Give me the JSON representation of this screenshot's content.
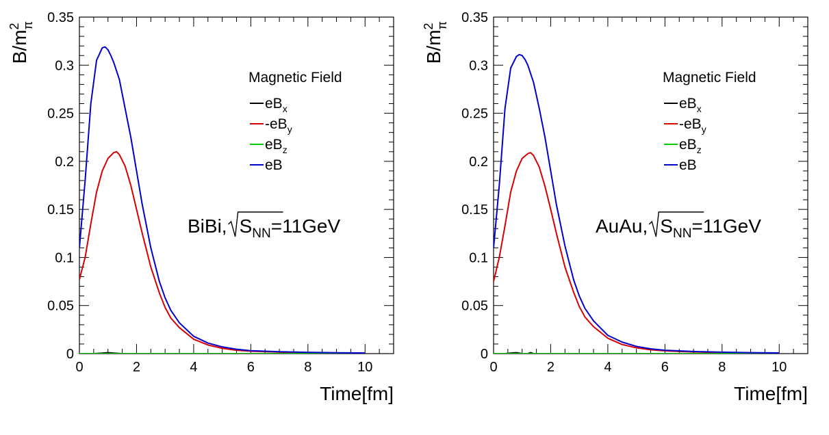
{
  "chart_data": [
    {
      "type": "line",
      "xlabel": "Time[fm]",
      "ylabel": {
        "main": "B/m",
        "sup": "2",
        "sub": "π"
      },
      "xlim": [
        0,
        11
      ],
      "ylim": [
        0,
        0.35
      ],
      "x_ticks": [
        "0",
        "2",
        "4",
        "6",
        "8",
        "10"
      ],
      "y_ticks": [
        "0",
        "0.05",
        "0.1",
        "0.15",
        "0.2",
        "0.25",
        "0.3",
        "0.35"
      ],
      "legend": {
        "header": "Magnetic Field",
        "position": "top-right"
      },
      "annotation": {
        "prefix": "BiBi, ",
        "sqrt_main": "S",
        "sqrt_sub": "NN",
        "suffix": "=11GeV"
      },
      "series": [
        {
          "name": {
            "main": "eB",
            "sub": "x"
          },
          "color": "#000000",
          "x": [
            0,
            0.5,
            0.8,
            1.0,
            1.2,
            1.5,
            2.0,
            3.0,
            10.0
          ],
          "y": [
            0,
            0,
            0.0005,
            0.001,
            0.0005,
            0,
            0,
            0,
            0
          ]
        },
        {
          "name": {
            "main": "-eB",
            "sub": "y"
          },
          "color": "#d60000",
          "x": [
            0,
            0.2,
            0.4,
            0.6,
            0.8,
            1.0,
            1.2,
            1.3,
            1.4,
            1.6,
            1.8,
            2.0,
            2.2,
            2.5,
            2.8,
            3.0,
            3.2,
            3.5,
            4.0,
            4.5,
            5.0,
            5.5,
            6.0,
            7.0,
            8.0,
            9.0,
            10.0
          ],
          "y": [
            0.077,
            0.1,
            0.135,
            0.168,
            0.19,
            0.203,
            0.209,
            0.21,
            0.207,
            0.195,
            0.175,
            0.15,
            0.125,
            0.09,
            0.063,
            0.048,
            0.037,
            0.027,
            0.015,
            0.009,
            0.0055,
            0.0035,
            0.0025,
            0.0015,
            0.001,
            0.0007,
            0.0005
          ]
        },
        {
          "name": {
            "main": "eB",
            "sub": "z"
          },
          "color": "#00cc00",
          "x": [
            0,
            10.0
          ],
          "y": [
            0,
            0
          ]
        },
        {
          "name": {
            "main": "eB",
            "sub": ""
          },
          "color": "#0000cc",
          "x": [
            0,
            0.2,
            0.4,
            0.6,
            0.8,
            0.9,
            1.0,
            1.1,
            1.2,
            1.4,
            1.6,
            1.8,
            2.0,
            2.2,
            2.5,
            2.8,
            3.0,
            3.2,
            3.5,
            4.0,
            4.5,
            5.0,
            5.5,
            6.0,
            7.0,
            8.0,
            9.0,
            10.0
          ],
          "y": [
            0.11,
            0.18,
            0.26,
            0.305,
            0.318,
            0.319,
            0.316,
            0.31,
            0.303,
            0.285,
            0.255,
            0.225,
            0.19,
            0.155,
            0.11,
            0.075,
            0.058,
            0.045,
            0.032,
            0.018,
            0.011,
            0.007,
            0.0045,
            0.003,
            0.002,
            0.0013,
            0.0009,
            0.0006
          ]
        }
      ]
    },
    {
      "type": "line",
      "xlabel": "Time[fm]",
      "ylabel": {
        "main": "B/m",
        "sup": "2",
        "sub": "π"
      },
      "xlim": [
        0,
        11
      ],
      "ylim": [
        0,
        0.35
      ],
      "x_ticks": [
        "0",
        "2",
        "4",
        "6",
        "8",
        "10"
      ],
      "y_ticks": [
        "0",
        "0.05",
        "0.1",
        "0.15",
        "0.2",
        "0.25",
        "0.3",
        "0.35"
      ],
      "legend": {
        "header": "Magnetic Field",
        "position": "top-right"
      },
      "annotation": {
        "prefix": "AuAu,",
        "sqrt_main": "S",
        "sqrt_sub": "NN",
        "suffix": "=11GeV"
      },
      "series": [
        {
          "name": {
            "main": "eB",
            "sub": "x"
          },
          "color": "#000000",
          "x": [
            0,
            0.4,
            0.6,
            0.8,
            1.0,
            1.2,
            1.3,
            1.4,
            1.6,
            2.0,
            10.0
          ],
          "y": [
            0,
            0,
            0.0005,
            0.001,
            0,
            0,
            0.001,
            0,
            0,
            0,
            0
          ]
        },
        {
          "name": {
            "main": "-eB",
            "sub": "y"
          },
          "color": "#d60000",
          "x": [
            0,
            0.2,
            0.4,
            0.6,
            0.8,
            1.0,
            1.2,
            1.3,
            1.4,
            1.6,
            1.8,
            2.0,
            2.2,
            2.5,
            2.8,
            3.0,
            3.2,
            3.5,
            4.0,
            4.5,
            5.0,
            5.5,
            6.0,
            7.0,
            8.0,
            9.0,
            10.0
          ],
          "y": [
            0.075,
            0.1,
            0.133,
            0.168,
            0.19,
            0.203,
            0.208,
            0.209,
            0.206,
            0.194,
            0.174,
            0.15,
            0.125,
            0.09,
            0.064,
            0.049,
            0.038,
            0.028,
            0.016,
            0.0095,
            0.006,
            0.004,
            0.0028,
            0.0017,
            0.0011,
            0.0008,
            0.0005
          ]
        },
        {
          "name": {
            "main": "eB",
            "sub": "z"
          },
          "color": "#00cc00",
          "x": [
            0,
            10.0
          ],
          "y": [
            0,
            0
          ]
        },
        {
          "name": {
            "main": "eB",
            "sub": ""
          },
          "color": "#0000cc",
          "x": [
            0,
            0.2,
            0.4,
            0.6,
            0.8,
            0.9,
            1.0,
            1.1,
            1.2,
            1.4,
            1.6,
            1.8,
            2.0,
            2.2,
            2.5,
            2.8,
            3.0,
            3.2,
            3.5,
            4.0,
            4.5,
            5.0,
            5.5,
            6.0,
            7.0,
            8.0,
            9.0,
            10.0
          ],
          "y": [
            0.11,
            0.175,
            0.255,
            0.297,
            0.309,
            0.311,
            0.31,
            0.306,
            0.3,
            0.282,
            0.255,
            0.225,
            0.19,
            0.155,
            0.112,
            0.077,
            0.06,
            0.047,
            0.034,
            0.019,
            0.012,
            0.0075,
            0.005,
            0.0035,
            0.0022,
            0.0015,
            0.001,
            0.0007
          ]
        }
      ]
    }
  ]
}
